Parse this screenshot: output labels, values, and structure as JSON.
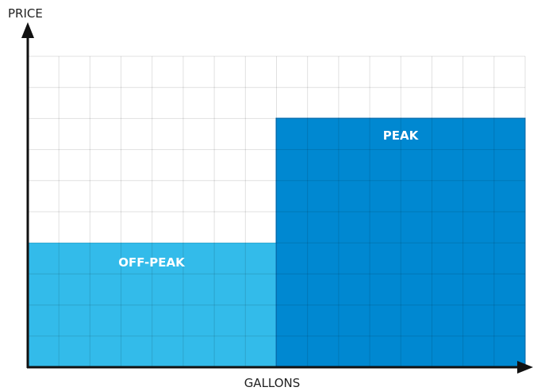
{
  "y_axis": {
    "label": "PRICE"
  },
  "x_axis": {
    "label": "GALLONS"
  },
  "regions": [
    {
      "label": "OFF-PEAK"
    },
    {
      "label": "PEAK"
    }
  ]
}
